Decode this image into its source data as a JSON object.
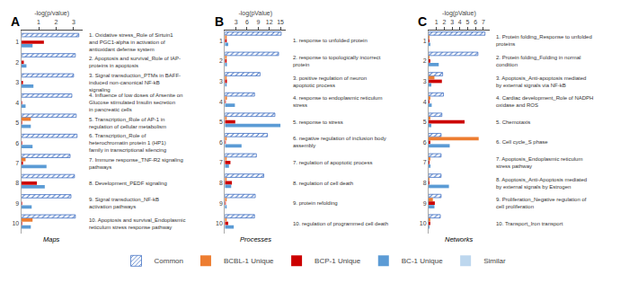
{
  "chart_data": [
    {
      "type": "bar",
      "orientation": "horizontal",
      "title": "A",
      "subtitle": "Maps",
      "xlabel": "-log(p/value)",
      "xlim": [
        0,
        3.5
      ],
      "xticks": [
        1,
        2,
        3
      ],
      "grid": false,
      "legend": "bottom",
      "categories": [
        "1",
        "2",
        "3",
        "4",
        "5",
        "6",
        "7",
        "8",
        "9",
        "10"
      ],
      "series": [
        {
          "name": "Common",
          "color": "#4472c4",
          "marker": "hatch",
          "values": [
            3.3,
            3.1,
            3.0,
            2.9,
            3.15,
            3.2,
            2.8,
            3.05,
            2.85,
            3.1
          ]
        },
        {
          "name": "BCBL-1 Unique",
          "color": "#ed7d31",
          "values": [
            0,
            0,
            0,
            0,
            0.55,
            0,
            0.25,
            0,
            0,
            0.65
          ]
        },
        {
          "name": "BCP-1 Unique",
          "color": "#cc0000",
          "values": [
            1.3,
            0.15,
            0.1,
            0.05,
            0.05,
            0.05,
            0.1,
            0.9,
            0.05,
            0.05
          ]
        },
        {
          "name": "BC-1 Unique",
          "color": "#5b9bd5",
          "values": [
            0.65,
            0.3,
            0.7,
            0.25,
            0.55,
            0.65,
            1.45,
            1.35,
            0.6,
            0.55
          ]
        },
        {
          "name": "Similar",
          "color": "#bdd7ee",
          "values": [
            0,
            0,
            0,
            0,
            0,
            0,
            0,
            0,
            0,
            0
          ]
        }
      ],
      "annotations": [
        "1. Oxidative stress_Role of Sirtuin1\nand PGC1-alpha in activation of\nantioxidant defense system",
        "2. Apoptosis and survival_Role of IAP-\nproteins in apoptosis",
        "3. Signal transduction_PTMs in BAFF-\ninduced non-canonical NF-kB\nsignaling",
        "4. Influence of low doses of Arsenite on\nGlucose stimulated Insulin secretion\nin pancreatic cells",
        "5. Transcription_Role of AP-1 in\nregulation of cellular metabolism",
        "6. Transcription_Role of\nheterochromatin protein 1 (HP1)\nfamily in transcriptional silencing",
        "7. Immune response_TNF-R2 signaling\npathways",
        "8. Development_PEDF signaling",
        "9. Signal transduction_NF-kB\nactivation pathways",
        "10. Apoptosis and survival_Endoplasmic\nreticulum stress response pathway"
      ]
    },
    {
      "type": "bar",
      "orientation": "horizontal",
      "title": "B",
      "subtitle": "Processes",
      "xlabel": "-log(pValue)",
      "xlim": [
        0,
        16.5
      ],
      "xticks": [
        3,
        6,
        9,
        12,
        15
      ],
      "grid": false,
      "categories": [
        "1",
        "2",
        "3",
        "4",
        "5",
        "6",
        "7",
        "8",
        "9",
        "10"
      ],
      "series": [
        {
          "name": "Common",
          "color": "#4472c4",
          "marker": "hatch",
          "values": [
            15.2,
            14.5,
            9.5,
            8.0,
            13.5,
            11.5,
            8.5,
            10.5,
            8.2,
            8.0
          ]
        },
        {
          "name": "BCBL-1 Unique",
          "color": "#ed7d31",
          "values": [
            0.5,
            0.4,
            0.3,
            0.55,
            0.45,
            0.3,
            0.35,
            0.45,
            0.3,
            0.3
          ]
        },
        {
          "name": "BCP-1 Unique",
          "color": "#cc0000",
          "values": [
            0.5,
            0.4,
            0.55,
            0.1,
            2.8,
            0.1,
            1.5,
            1.9,
            0.15,
            0.9
          ]
        },
        {
          "name": "BC-1 Unique",
          "color": "#5b9bd5",
          "values": [
            0.9,
            0.55,
            0.35,
            2.7,
            15.0,
            4.5,
            1.1,
            1.7,
            0.25,
            2.4
          ]
        },
        {
          "name": "Similar",
          "color": "#bdd7ee",
          "values": [
            0,
            0,
            0,
            0,
            0,
            0,
            0,
            0,
            0,
            0
          ]
        }
      ],
      "annotations": [
        "1. response to unfolded protein",
        "2. response to topologically incorrect\nprotein",
        "3. positive regulation of neuron\napoptotic process",
        "4. response to endoplasmic reticulum\nstress",
        "5. response to stress",
        "6. negative regulation of inclusion body\nassembly",
        "7. regulation of apoptotic process",
        "8. regulation of cell death",
        "9. protein refolding",
        "10. regulation of programmed cell death"
      ]
    },
    {
      "type": "bar",
      "orientation": "horizontal",
      "title": "C",
      "subtitle": "Networks",
      "xlabel": "-log(pValue)",
      "xlim": [
        0,
        7.8
      ],
      "xticks": [
        1,
        2,
        3,
        4,
        5,
        6,
        7
      ],
      "grid": false,
      "categories": [
        "1",
        "2",
        "3",
        "4",
        "5",
        "6",
        "7",
        "8",
        "9",
        "10"
      ],
      "series": [
        {
          "name": "Common",
          "color": "#4472c4",
          "marker": "hatch",
          "values": [
            7.2,
            6.3,
            1.8,
            1.9,
            1.7,
            1.6,
            1.6,
            1.6,
            1.6,
            1.5
          ]
        },
        {
          "name": "BCBL-1 Unique",
          "color": "#ed7d31",
          "values": [
            0.05,
            0.05,
            0.75,
            0.15,
            0.15,
            6.4,
            0.15,
            0.1,
            0.55,
            0.15
          ]
        },
        {
          "name": "BCP-1 Unique",
          "color": "#cc0000",
          "values": [
            0.1,
            0.15,
            1.7,
            0.1,
            4.6,
            0.2,
            0.1,
            0.1,
            0.8,
            0.15
          ]
        },
        {
          "name": "BC-1 Unique",
          "color": "#5b9bd5",
          "values": [
            0.15,
            1.3,
            0.35,
            0.4,
            0.35,
            2.7,
            0.25,
            2.6,
            0.75,
            0.1
          ]
        },
        {
          "name": "Similar",
          "color": "#bdd7ee",
          "values": [
            0,
            0,
            0,
            0,
            0,
            0,
            0,
            0,
            0,
            0
          ]
        }
      ],
      "annotations": [
        "1. Protein folding_Response to unfolded\nproteins",
        "2. Protein folding_Folding in normal\ncondition",
        "3. Apoptosis_Anti-apoptosis mediated\nby external signals via NF-kB",
        "4. Cardiac development_Role of NADPH\noxidase and ROS",
        "5. Chemotaxis",
        "6. Cell cycle_S phase",
        "7. Apoptosis_Endoplasmic reticulum\nstress pathway",
        "8. Apoptosis_Anti-Apoptosis mediated\nby external signals by Estrogen",
        "9. Proliferation_Negative regulation of\ncell proliferation",
        "10. Transport_Iron transport"
      ]
    }
  ]
}
